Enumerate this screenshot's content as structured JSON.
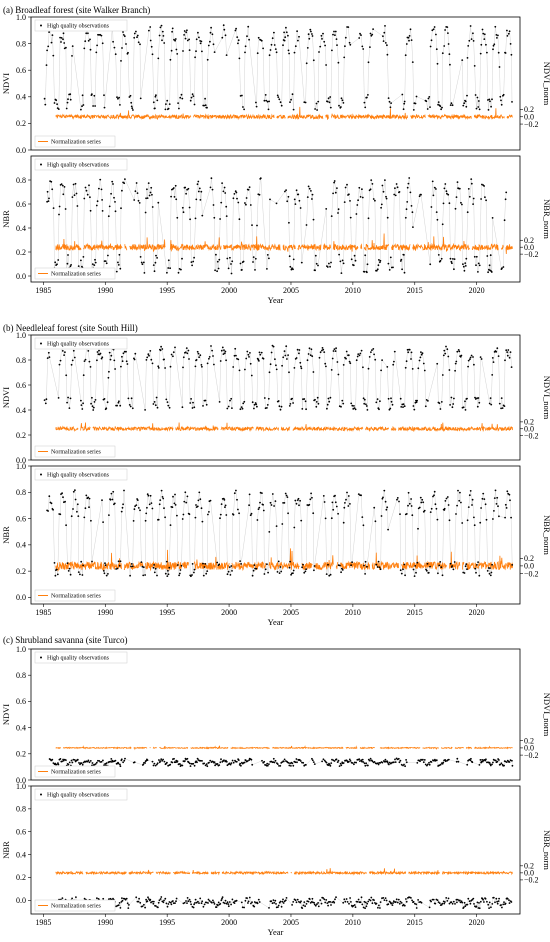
{
  "colors": {
    "observations": "#000000",
    "normalization": "#ff7f0e",
    "connector": "#c8c8c8",
    "frame": "#000000"
  },
  "chart_data": [
    {
      "type": "scatter",
      "title": "(a) Broadleaf forest (site Walker Branch)",
      "ylabel": "NDVI",
      "ylabel_right": "NDVI_norm",
      "ylim": [
        0,
        1
      ],
      "xlim": [
        1984,
        2023.5
      ],
      "yticks": [
        "0.0",
        "0.2",
        "0.4",
        "0.6",
        "0.8",
        "1.0"
      ],
      "yticks_right": [
        "0.2",
        "0.0",
        "−0.2"
      ],
      "xticks": [],
      "xlabel": "",
      "legend_obs": "High quality observations",
      "legend_norm": "Normalization series",
      "pattern": {
        "base": 0.36,
        "amp": 0.52,
        "noise": 0.06,
        "norm_level": 0.25,
        "norm_noise": 0.015,
        "start": 1985.1,
        "density": 1.0
      }
    },
    {
      "type": "scatter",
      "title": "",
      "ylabel": "NBR",
      "ylabel_right": "NBR_norm",
      "ylim": [
        -0.05,
        1
      ],
      "xlim": [
        1984,
        2023.5
      ],
      "yticks": [
        "0.0",
        "0.2",
        "0.4",
        "0.6",
        "0.8"
      ],
      "yticks_right": [
        "0.2",
        "0.0",
        "−0.2"
      ],
      "xticks": [
        "1985",
        "1990",
        "1995",
        "2000",
        "2005",
        "2010",
        "2015",
        "2020"
      ],
      "xlabel": "Year",
      "legend_obs": "High quality observations",
      "legend_norm": "Normalization series",
      "pattern": {
        "base": 0.1,
        "amp": 0.64,
        "noise": 0.08,
        "norm_level": 0.24,
        "norm_noise": 0.025,
        "start": 1985.3,
        "density": 1.0
      }
    },
    {
      "type": "scatter",
      "title": "(b) Needleleaf forest (site South Hill)",
      "ylabel": "NDVI",
      "ylabel_right": "NDVI_norm",
      "ylim": [
        0,
        1
      ],
      "xlim": [
        1984,
        2023.5
      ],
      "yticks": [
        "0.0",
        "0.2",
        "0.4",
        "0.6",
        "0.8",
        "1.0"
      ],
      "yticks_right": [
        "0.2",
        "0.0",
        "−0.2"
      ],
      "xticks": [],
      "xlabel": "",
      "legend_obs": "High quality observations",
      "legend_norm": "Normalization series",
      "pattern": {
        "base": 0.45,
        "amp": 0.42,
        "noise": 0.05,
        "norm_level": 0.25,
        "norm_noise": 0.015,
        "start": 1985.1,
        "density": 1.0
      }
    },
    {
      "type": "scatter",
      "title": "",
      "ylabel": "NBR",
      "ylabel_right": "NBR_norm",
      "ylim": [
        -0.05,
        1
      ],
      "xlim": [
        1984,
        2023.5
      ],
      "yticks": [
        "0.0",
        "0.2",
        "0.4",
        "0.6",
        "0.8",
        "1.0"
      ],
      "yticks_right": [
        "0.2",
        "0.0",
        "−0.2"
      ],
      "xticks": [
        "1985",
        "1990",
        "1995",
        "2000",
        "2005",
        "2010",
        "2015",
        "2020"
      ],
      "xlabel": "Year",
      "legend_obs": "High quality observations",
      "legend_norm": "Normalization series",
      "pattern": {
        "base": 0.22,
        "amp": 0.54,
        "noise": 0.06,
        "norm_level": 0.24,
        "norm_noise": 0.03,
        "start": 1985.3,
        "density": 1.0
      }
    },
    {
      "type": "scatter",
      "title": "(c) Shrubland savanna (site Turco)",
      "ylabel": "NDVI",
      "ylabel_right": "NDVI_norm",
      "ylim": [
        0,
        1
      ],
      "xlim": [
        1984,
        2023.5
      ],
      "yticks": [
        "0.0",
        "0.2",
        "0.4",
        "0.6",
        "0.8",
        "1.0"
      ],
      "yticks_right": [
        "0.2",
        "0.0",
        "−0.2"
      ],
      "xticks": [],
      "xlabel": "",
      "legend_obs": "High quality observations",
      "legend_norm": "Normalization series",
      "pattern": {
        "base": 0.12,
        "amp": 0.03,
        "noise": 0.015,
        "norm_level": 0.245,
        "norm_noise": 0.004,
        "start": 1985.5,
        "density": 1.0
      }
    },
    {
      "type": "scatter",
      "title": "",
      "ylabel": "NBR",
      "ylabel_right": "NBR_norm",
      "ylim": [
        -0.12,
        1
      ],
      "xlim": [
        1984,
        2023.5
      ],
      "yticks": [
        "0.0",
        "0.2",
        "0.4",
        "0.6",
        "0.8",
        "1.0"
      ],
      "yticks_right": [
        "0.2",
        "0.0",
        "−0.2"
      ],
      "xticks": [
        "1985",
        "1990",
        "1995",
        "2000",
        "2005",
        "2010",
        "2015",
        "2020"
      ],
      "xlabel": "Year",
      "legend_obs": "High quality observations",
      "legend_norm": "Normalization series",
      "pattern": {
        "base": -0.04,
        "amp": 0.04,
        "noise": 0.03,
        "norm_level": 0.24,
        "norm_noise": 0.01,
        "start": 1986.0,
        "density": 1.0
      }
    }
  ]
}
